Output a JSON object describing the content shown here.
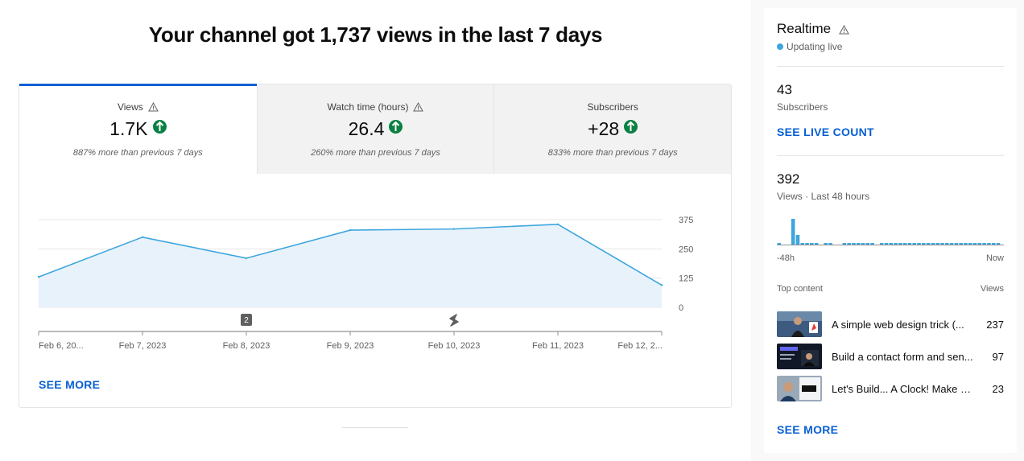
{
  "headline": "Your channel got 1,737 views in the last 7 days",
  "tabs": [
    {
      "label": "Views",
      "value": "1.7K",
      "sub": "887% more than previous 7 days",
      "active": true
    },
    {
      "label": "Watch time (hours)",
      "value": "26.4",
      "sub": "260% more than previous 7 days",
      "active": false
    },
    {
      "label": "Subscribers",
      "value": "+28",
      "sub": "833% more than previous 7 days",
      "active": false
    }
  ],
  "chart_data": {
    "type": "area",
    "x": [
      "Feb 6, 20...",
      "Feb 7, 2023",
      "Feb 8, 2023",
      "Feb 9, 2023",
      "Feb 10, 2023",
      "Feb 11, 2023",
      "Feb 12, 2..."
    ],
    "series": [
      {
        "values": [
          130,
          300,
          210,
          330,
          335,
          355,
          95
        ]
      }
    ],
    "yticks": [
      "375",
      "250",
      "125",
      "0"
    ],
    "ylim": [
      0,
      375
    ],
    "markers": [
      {
        "category_index": 2,
        "label": "2",
        "icon": "number-badge"
      },
      {
        "category_index": 4,
        "label": "",
        "icon": "shorts-icon"
      }
    ],
    "line_color": "#3ea6de",
    "fill_color": "#e8f2fb",
    "grid": true
  },
  "main_see_more": "SEE MORE",
  "realtime": {
    "title": "Realtime",
    "live_label": "Updating live",
    "subscribers_count": "43",
    "subscribers_label": "Subscribers",
    "see_live_count": "SEE LIVE COUNT",
    "views_count": "392",
    "views_label": "Views · Last 48 hours",
    "bars": [
      1,
      0,
      0,
      16,
      6,
      1,
      1,
      1,
      1,
      0,
      1,
      1,
      0,
      0,
      1,
      1,
      1,
      1,
      1,
      1,
      1,
      0,
      1,
      1,
      1,
      1,
      1,
      1,
      1,
      1,
      1,
      1,
      1,
      1,
      1,
      1,
      1,
      1,
      1,
      1,
      1,
      1,
      1,
      1,
      1,
      1,
      1,
      1
    ],
    "axis_start": "-48h",
    "axis_end": "Now",
    "top_content_label": "Top content",
    "views_col_label": "Views",
    "top_content": [
      {
        "title": "A simple web design trick (...",
        "views": "237"
      },
      {
        "title": "Build a contact form and sen...",
        "views": "97"
      },
      {
        "title": "Let's Build... A Clock! Make a...",
        "views": "23"
      }
    ],
    "see_more": "SEE MORE"
  },
  "colors": {
    "accent": "#065fd4",
    "up": "#0b8043",
    "live": "#3ea6de"
  },
  "icons": {
    "warning": "warning-icon",
    "up": "arrow-up-circle-icon"
  }
}
